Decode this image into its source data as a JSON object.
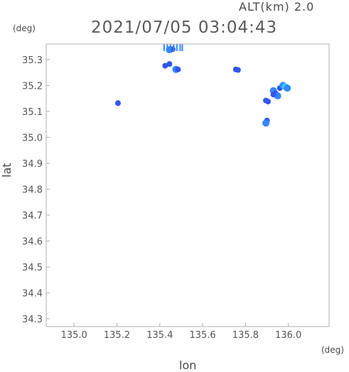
{
  "header": {
    "alt_label": "ALT(km) 2.0",
    "timestamp": "2021/07/05 03:04:43"
  },
  "axes": {
    "y_unit": "(deg)",
    "x_unit": "(deg)",
    "xlabel": "lon",
    "ylabel": "lat"
  },
  "colors": {
    "frame": "#b0b0b0",
    "tick_text": "#555555",
    "echo_blue": "#3355ee",
    "echo_mid": "#3388ff",
    "echo_cyan": "#33ccff"
  },
  "chart_data": {
    "type": "scatter",
    "xlabel": "lon",
    "ylabel": "lat",
    "xlim": [
      134.87,
      136.19
    ],
    "ylim": [
      34.27,
      35.36
    ],
    "xticks": [
      "135.0",
      "135.2",
      "135.4",
      "135.6",
      "135.8",
      "136.0"
    ],
    "yticks": [
      "35.3",
      "35.2",
      "35.1",
      "35.0",
      "34.9",
      "34.8",
      "34.7",
      "34.6",
      "34.5",
      "34.4",
      "34.3"
    ],
    "grid": false,
    "points": [
      {
        "x": 135.205,
        "y": 35.132,
        "level": 1
      },
      {
        "x": 135.445,
        "y": 35.283,
        "level": 1
      },
      {
        "x": 135.425,
        "y": 35.276,
        "level": 1
      },
      {
        "x": 135.475,
        "y": 35.262,
        "level": 2
      },
      {
        "x": 135.485,
        "y": 35.262,
        "level": 1
      },
      {
        "x": 135.445,
        "y": 35.338,
        "level": 2
      },
      {
        "x": 135.46,
        "y": 35.34,
        "level": 1
      },
      {
        "x": 135.755,
        "y": 35.262,
        "level": 1
      },
      {
        "x": 135.765,
        "y": 35.26,
        "level": 1
      },
      {
        "x": 135.895,
        "y": 35.142,
        "level": 1
      },
      {
        "x": 135.905,
        "y": 35.138,
        "level": 1
      },
      {
        "x": 135.9,
        "y": 35.065,
        "level": 1
      },
      {
        "x": 135.895,
        "y": 35.055,
        "level": 2
      },
      {
        "x": 135.93,
        "y": 35.18,
        "level": 2
      },
      {
        "x": 135.94,
        "y": 35.17,
        "level": 1
      },
      {
        "x": 135.95,
        "y": 35.16,
        "level": 2
      },
      {
        "x": 135.96,
        "y": 35.19,
        "level": 1
      },
      {
        "x": 135.975,
        "y": 35.2,
        "level": 2
      },
      {
        "x": 135.985,
        "y": 35.195,
        "level": 3
      },
      {
        "x": 135.995,
        "y": 35.19,
        "level": 2
      },
      {
        "x": 135.93,
        "y": 35.165,
        "level": 1
      }
    ],
    "bars": [
      135.42,
      135.435,
      135.45,
      135.465,
      135.48,
      135.495,
      135.505
    ]
  }
}
